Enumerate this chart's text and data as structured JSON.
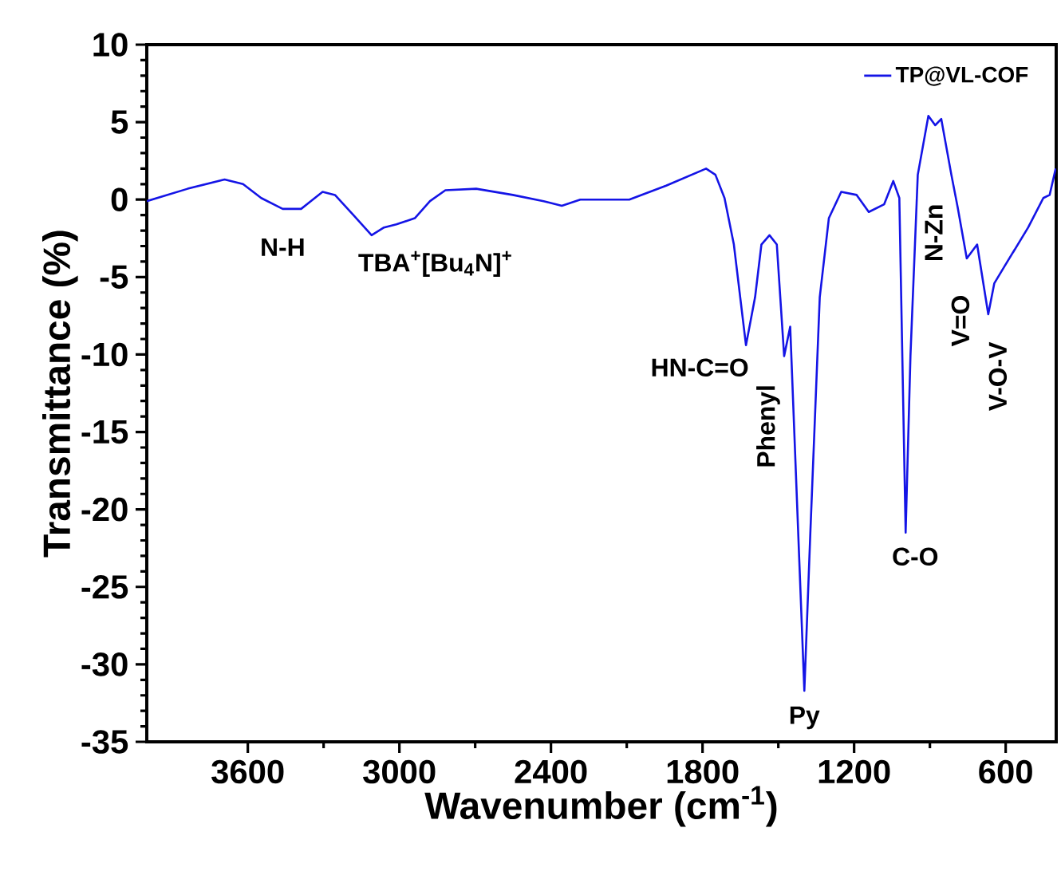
{
  "chart_data": {
    "type": "line",
    "xlabel": "Wavenumber (cm$^{-1}$)",
    "ylabel": "Transmittance (%)",
    "xlim": [
      4000,
      400
    ],
    "xticks": [
      3600,
      3000,
      2400,
      1800,
      1200,
      600
    ],
    "ylim": [
      -35,
      10
    ],
    "yticks": [
      -35,
      -30,
      -25,
      -20,
      -15,
      -10,
      -5,
      0,
      5,
      10
    ],
    "legend": "top right",
    "grid": false,
    "series": [
      {
        "name": "TP@VL-COF",
        "color": "#1414e6",
        "x": [
          4000,
          3838,
          3692,
          3619,
          3547,
          3462,
          3389,
          3304,
          3255,
          3182,
          3110,
          3061,
          3012,
          2939,
          2879,
          2818,
          2696,
          2551,
          2429,
          2357,
          2284,
          2090,
          1944,
          1786,
          1749,
          1713,
          1676,
          1628,
          1592,
          1567,
          1535,
          1506,
          1477,
          1453,
          1397,
          1373,
          1336,
          1300,
          1251,
          1190,
          1142,
          1081,
          1045,
          1021,
          996,
          977,
          948,
          906,
          879,
          855,
          815,
          790,
          754,
          713,
          669,
          645,
          608,
          511,
          451,
          426,
          402
        ],
        "values": [
          -0.1,
          0.7,
          1.3,
          1.0,
          0.1,
          -0.6,
          -0.6,
          0.5,
          0.3,
          -1.0,
          -2.3,
          -1.8,
          -1.6,
          -1.2,
          -0.1,
          0.6,
          0.7,
          0.3,
          -0.1,
          -0.4,
          0,
          0,
          0.9,
          2.0,
          1.6,
          0.1,
          -2.9,
          -9.4,
          -6.3,
          -2.9,
          -2.3,
          -2.9,
          -10.1,
          -8.2,
          -31.7,
          -21.4,
          -6.3,
          -1.2,
          0.5,
          0.3,
          -0.8,
          -0.3,
          1.2,
          0.1,
          -21.5,
          -10.1,
          1.6,
          5.4,
          4.8,
          5.2,
          1.6,
          -0.5,
          -3.8,
          -2.9,
          -7.4,
          -5.4,
          -4.4,
          -1.8,
          0.1,
          0.3,
          2.0
        ]
      }
    ],
    "annotations": [
      {
        "text": "N-H",
        "x": 3462,
        "y": -0.6
      },
      {
        "text": "TBA$^{+}$[Bu$_{4}$N]$^{+}$",
        "x": 3110,
        "y": -2.3
      },
      {
        "text": "HN-C=O",
        "x": 1628,
        "y": -9.4
      },
      {
        "text": "Phenyl",
        "x": 1477,
        "y": -10.1
      },
      {
        "text": "Py",
        "x": 1397,
        "y": -31.7
      },
      {
        "text": "C-O",
        "x": 996,
        "y": -21.5
      },
      {
        "text": "N-Zn",
        "x": 790,
        "y": -0.5
      },
      {
        "text": "V=O",
        "x": 754,
        "y": -3.8
      },
      {
        "text": "V-O-V",
        "x": 669,
        "y": -7.4
      }
    ]
  }
}
